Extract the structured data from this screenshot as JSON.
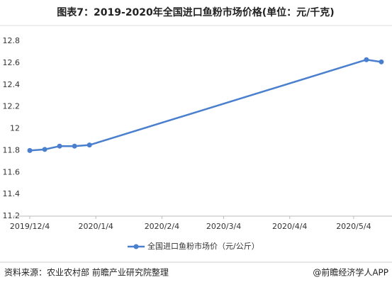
{
  "chart_data": {
    "type": "line",
    "title": "图表7：2019-2020年全国进口鱼粉市场价格(单位：元/千克)",
    "x": [
      "2019-12-04",
      "2019-12-11",
      "2019-12-18",
      "2019-12-25",
      "2020-01-01",
      "2020-05-10",
      "2020-05-17"
    ],
    "series": [
      {
        "name": "全国进口鱼粉市场价（元/公斤）",
        "color": "#4a7fcf",
        "values": [
          11.8,
          11.81,
          11.84,
          11.84,
          11.85,
          12.63,
          12.61
        ]
      }
    ],
    "xlim": [
      "2019-11-26",
      "2020-05-22"
    ],
    "xticks": [
      {
        "value": "2019-12-04",
        "label": "2019/12/4"
      },
      {
        "value": "2020-01-04",
        "label": "2020/1/4"
      },
      {
        "value": "2020-02-04",
        "label": "2020/2/4"
      },
      {
        "value": "2020-03-04",
        "label": "2020/3/4"
      },
      {
        "value": "2020-04-04",
        "label": "2020/4/4"
      },
      {
        "value": "2020-05-04",
        "label": "2020/5/4"
      }
    ],
    "ylim": [
      11.2,
      12.8
    ],
    "yticks": [
      11.2,
      11.4,
      11.6,
      11.8,
      12,
      12.2,
      12.4,
      12.6,
      12.8
    ],
    "source": "资料来源：农业农村部 前瞻产业研究院整理",
    "credit": "@前瞻经济学人APP"
  }
}
